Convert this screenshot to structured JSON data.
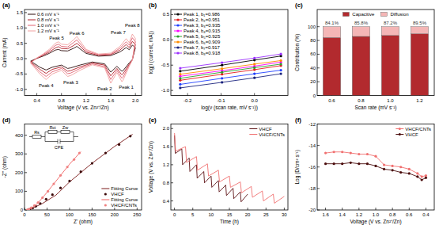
{
  "chart_data": [
    {
      "type": "line",
      "title": "(a)",
      "x_label": "Voltage (V vs. Zn²⁺/Zn)",
      "y_label": "Current (mA)",
      "x": [
        0.3,
        0.4,
        0.5,
        0.6,
        0.7,
        0.75,
        0.8,
        0.9,
        1.0,
        1.05,
        1.1,
        1.2,
        1.4,
        1.6,
        1.75,
        1.85,
        1.9,
        1.95,
        2.0,
        1.95,
        1.9,
        1.8,
        1.78,
        1.7,
        1.6,
        1.55,
        1.5,
        1.3,
        1.1,
        0.95,
        0.9,
        0.8,
        0.65,
        0.55,
        0.45,
        0.3
      ],
      "xlim": [
        0.2,
        2.1
      ],
      "xticks": [
        0.4,
        0.8,
        1.2,
        1.6,
        {
          "value": 2,
          "label": "2.0"
        }
      ],
      "ylim": [
        -1.2,
        1.6
      ],
      "yticks": [
        {
          "value": -1,
          "label": "-1.0"
        },
        -0.5,
        {
          "value": 0,
          "label": "0.0"
        },
        0.5,
        {
          "value": 1,
          "label": "1.0"
        },
        1.5
      ],
      "legend": "upper left",
      "series": [
        {
          "name": "0.6 mV s⁻¹",
          "color": "#2b0a0a",
          "values": [
            -0.08,
            0.01,
            0.08,
            0.17,
            0.28,
            0.3,
            0.26,
            0.25,
            0.34,
            0.4,
            0.32,
            0.17,
            0.08,
            0.1,
            0.22,
            0.36,
            0.29,
            0.44,
            0.36,
            -0.03,
            -0.14,
            -0.39,
            -0.41,
            -0.25,
            -0.44,
            -0.3,
            -0.17,
            -0.11,
            -0.21,
            -0.3,
            -0.32,
            -0.21,
            -0.28,
            -0.37,
            -0.28,
            -0.08
          ]
        },
        {
          "name": "0.8 mV s⁻¹",
          "color": "#b3202a",
          "values": [
            -0.11,
            0.01,
            0.11,
            0.21,
            0.35,
            0.39,
            0.33,
            0.32,
            0.43,
            0.5,
            0.41,
            0.21,
            0.11,
            0.13,
            0.28,
            0.46,
            0.36,
            0.56,
            0.46,
            -0.04,
            -0.18,
            -0.49,
            -0.53,
            -0.32,
            -0.56,
            -0.39,
            -0.21,
            -0.14,
            -0.27,
            -0.39,
            -0.41,
            -0.27,
            -0.35,
            -0.48,
            -0.35,
            -0.11
          ]
        },
        {
          "name": "1.0 mV s⁻¹",
          "color": "#e06070",
          "values": [
            -0.13,
            0.02,
            0.13,
            0.26,
            0.43,
            0.47,
            0.4,
            0.38,
            0.53,
            0.61,
            0.49,
            0.26,
            0.13,
            0.15,
            0.34,
            0.55,
            0.44,
            0.68,
            0.55,
            -0.04,
            -0.21,
            -0.6,
            -0.64,
            -0.38,
            -0.68,
            -0.47,
            -0.26,
            -0.17,
            -0.32,
            -0.47,
            -0.49,
            -0.32,
            -0.43,
            -0.58,
            -0.43,
            -0.13
          ]
        },
        {
          "name": "1.2 mV s⁻¹",
          "color": "#f2a0a0",
          "values": [
            -0.15,
            0.02,
            0.15,
            0.3,
            0.5,
            0.55,
            0.47,
            0.45,
            0.62,
            0.72,
            0.58,
            0.3,
            0.15,
            0.18,
            0.4,
            0.65,
            0.52,
            0.8,
            0.65,
            -0.05,
            -0.25,
            -0.7,
            -0.75,
            -0.45,
            -0.8,
            -0.55,
            -0.3,
            -0.2,
            -0.38,
            -0.55,
            -0.58,
            -0.38,
            -0.5,
            -0.68,
            -0.5,
            -0.15
          ]
        }
      ],
      "annotations": [
        {
          "text": "Peak 1",
          "x": 1.85,
          "y": -0.95
        },
        {
          "text": "Peak 2",
          "x": 1.5,
          "y": -1.0
        },
        {
          "text": "Peak 3",
          "x": 0.95,
          "y": -0.78
        },
        {
          "text": "Peak 4",
          "x": 0.55,
          "y": -0.88
        },
        {
          "text": "Peak 5",
          "x": 0.72,
          "y": 0.66
        },
        {
          "text": "Peak 6",
          "x": 1.05,
          "y": 0.82
        },
        {
          "text": "Peak 7",
          "x": 1.72,
          "y": 0.85
        },
        {
          "text": "Peak 8",
          "x": 1.95,
          "y": 1.07
        }
      ]
    },
    {
      "type": "line",
      "title": "(b)",
      "x_label": "log(ν (scan rate, mV s⁻¹))",
      "y_label": "log(i (current, mA))",
      "x": [
        -0.222,
        -0.097,
        0,
        0.079
      ],
      "xlim": [
        -0.25,
        0.1
      ],
      "xticks": [
        -0.2,
        -0.1,
        {
          "value": 0,
          "label": "0.0"
        }
      ],
      "ylim": [
        -1.1,
        0.6
      ],
      "yticks": [
        {
          "value": -1,
          "label": "-1.0"
        },
        -0.5,
        {
          "value": 0,
          "label": "0.0"
        },
        0.5
      ],
      "legend": "upper left",
      "series": [
        {
          "name": "Peak 1, b₁=0.986",
          "color": "#000000",
          "marker": "circle",
          "values": [
            -0.62,
            -0.5,
            -0.4,
            -0.32
          ]
        },
        {
          "name": "Peak 2, b₂=0.951",
          "color": "#e41a1c",
          "marker": "circle",
          "values": [
            -0.8,
            -0.68,
            -0.59,
            -0.51
          ]
        },
        {
          "name": "Peak 3, b₃=0.935",
          "color": "#1f3fff",
          "marker": "circle",
          "values": [
            -0.88,
            -0.76,
            -0.67,
            -0.6
          ]
        },
        {
          "name": "Peak 4, b₄=0.915",
          "color": "#ff00ff",
          "marker": "circle",
          "values": [
            -0.72,
            -0.61,
            -0.52,
            -0.44
          ]
        },
        {
          "name": "Peak 5, b₅=0.925",
          "color": "#2ca02c",
          "marker": "circle",
          "values": [
            -0.76,
            -0.64,
            -0.55,
            -0.48
          ]
        },
        {
          "name": "Peak 6, b₆=0.909",
          "color": "#ff8c00",
          "marker": "circle",
          "values": [
            -0.68,
            -0.57,
            -0.48,
            -0.41
          ]
        },
        {
          "name": "Peak 7, b₇=0.917",
          "color": "#1a237e",
          "marker": "circle",
          "values": [
            -0.95,
            -0.84,
            -0.75,
            -0.67
          ]
        },
        {
          "name": "Peak 8, b₈=0.918",
          "color": "#9b30ff",
          "marker": "circle",
          "values": [
            -0.56,
            -0.45,
            -0.36,
            -0.28
          ]
        }
      ]
    },
    {
      "type": "bar",
      "title": "(c)",
      "x_label": "Scan rate (mV s⁻¹)",
      "y_label": "Contribution (%)",
      "categories": [
        "0.6",
        "0.8",
        "1.0",
        "1.2"
      ],
      "ylim": [
        0,
        125
      ],
      "yticks": [
        0,
        20,
        40,
        60,
        80,
        100
      ],
      "stacked": true,
      "data_labels": true,
      "legend": "upper center",
      "series": [
        {
          "name": "Capacitive",
          "color": "#b22a2e",
          "values": [
            84.1,
            85.8,
            87.2,
            89.5
          ],
          "value_labels": [
            "84.1%",
            "85.8%",
            "87.2%",
            "89.5%"
          ]
        },
        {
          "name": "Diffusion",
          "color": "#f4b6b6",
          "values": [
            15.9,
            14.2,
            12.8,
            10.5
          ]
        }
      ]
    },
    {
      "type": "scatter",
      "title": "(d)",
      "x_label": "Z' (ohm)",
      "y_label": "-Z'' (ohm)",
      "xlim": [
        0,
        260
      ],
      "xticks": [
        0,
        50,
        100,
        150,
        200,
        250
      ],
      "ylim": [
        0,
        460
      ],
      "yticks": [
        0,
        100,
        200,
        300,
        400
      ],
      "legend": "lower right",
      "inset_labels": [
        "Rs",
        "Rct",
        "CPE",
        "Zw"
      ],
      "series": [
        {
          "name": "Fitting Curve",
          "type": "line",
          "color": "#7b1a1a",
          "x": [
            5,
            10,
            20,
            40,
            70,
            100,
            150,
            200,
            240
          ],
          "values": [
            0,
            3,
            12,
            35,
            80,
            150,
            250,
            340,
            405
          ]
        },
        {
          "name": "VHCF",
          "type": "scatter",
          "color": "#3a0808",
          "marker": "circle",
          "x": [
            8,
            12,
            18,
            25,
            35,
            48,
            62,
            80,
            100,
            125,
            150,
            180,
            210,
            235
          ],
          "values": [
            1,
            4,
            10,
            20,
            35,
            58,
            82,
            118,
            155,
            205,
            250,
            305,
            350,
            395
          ]
        },
        {
          "name": "Fitting Curve",
          "type": "line",
          "color": "#f06060",
          "x": [
            5,
            10,
            20,
            30,
            45,
            60,
            80,
            100,
            125
          ],
          "values": [
            0,
            4,
            18,
            38,
            80,
            125,
            185,
            245,
            312
          ]
        },
        {
          "name": "VHCF/CNTs",
          "type": "scatter",
          "color": "#f08080",
          "marker": "circle",
          "x": [
            6,
            10,
            15,
            22,
            30,
            40,
            52,
            65,
            80,
            95,
            110,
            122
          ],
          "values": [
            1,
            5,
            12,
            24,
            40,
            66,
            100,
            140,
            185,
            230,
            270,
            305
          ]
        }
      ]
    },
    {
      "type": "line",
      "title": "(e)",
      "x_label": "Time (h)",
      "y_label": "Voltage (V vs. Zn²⁺/Zn)",
      "xlim": [
        -1,
        31
      ],
      "xticks": [
        0,
        5,
        10,
        15,
        20,
        25,
        30
      ],
      "ylim": [
        0.2,
        2.1
      ],
      "yticks": [
        0.4,
        0.8,
        1.2,
        1.6,
        {
          "value": 2,
          "label": "2.0"
        }
      ],
      "legend": "upper right",
      "series": [
        {
          "name": "VHCF",
          "color": "#5a0f12",
          "x": [
            0,
            0.2,
            2,
            2.2,
            4,
            4.2,
            6,
            6.2,
            8,
            8.2,
            10,
            10.2,
            12,
            12.2,
            14,
            14.2,
            16,
            16.2,
            18,
            18.2,
            20
          ],
          "values": [
            1.85,
            1.45,
            1.55,
            1.2,
            1.35,
            1.05,
            1.2,
            0.9,
            1.05,
            0.8,
            0.95,
            0.7,
            0.85,
            0.6,
            0.75,
            0.52,
            0.68,
            0.45,
            0.6,
            0.38,
            0.55
          ]
        },
        {
          "name": "VHCF/CNTs",
          "color": "#f07070",
          "x": [
            0,
            0.3,
            3,
            3.3,
            6,
            6.3,
            9,
            9.3,
            12,
            12.3,
            15,
            15.3,
            18,
            18.3,
            21,
            21.3,
            24,
            24.3,
            27,
            27.3,
            30
          ],
          "values": [
            1.9,
            1.5,
            1.6,
            1.25,
            1.38,
            1.08,
            1.22,
            0.95,
            1.08,
            0.82,
            0.95,
            0.7,
            0.82,
            0.58,
            0.72,
            0.48,
            0.62,
            0.4,
            0.55,
            0.35,
            0.5
          ]
        }
      ]
    },
    {
      "type": "line",
      "title": "(f)",
      "x_label": "Voltage (V vs. Zn²⁺/Zn)",
      "y_label": "Log (D/cm² s⁻¹)",
      "x": [
        1.6,
        1.5,
        1.4,
        1.3,
        1.2,
        1.1,
        1.0,
        0.9,
        0.8,
        0.7,
        0.6,
        0.5,
        0.45,
        0.4
      ],
      "xlim": [
        1.7,
        0.3
      ],
      "xticks": [
        1.6,
        1.4,
        1.2,
        {
          "value": 1,
          "label": "1.0"
        },
        0.8,
        0.6,
        0.4
      ],
      "ylim": [
        -20,
        -12
      ],
      "yticks": [
        -20,
        -18,
        -16,
        -14,
        -12
      ],
      "legend": "upper right",
      "series": [
        {
          "name": "VHCF/CNTs",
          "color": "#f07070",
          "marker": "circle",
          "values": [
            -14.7,
            -14.6,
            -14.6,
            -14.7,
            -14.8,
            -14.8,
            -15.0,
            -15.8,
            -15.9,
            -16.0,
            -16.2,
            -16.6,
            -16.9,
            -16.8
          ]
        },
        {
          "name": "VHCF",
          "color": "#4a0c0c",
          "marker": "circle",
          "values": [
            -15.7,
            -15.7,
            -15.7,
            -15.6,
            -15.7,
            -15.7,
            -15.9,
            -16.2,
            -16.3,
            -16.5,
            -16.6,
            -16.9,
            -17.2,
            -17.0
          ]
        }
      ]
    }
  ]
}
